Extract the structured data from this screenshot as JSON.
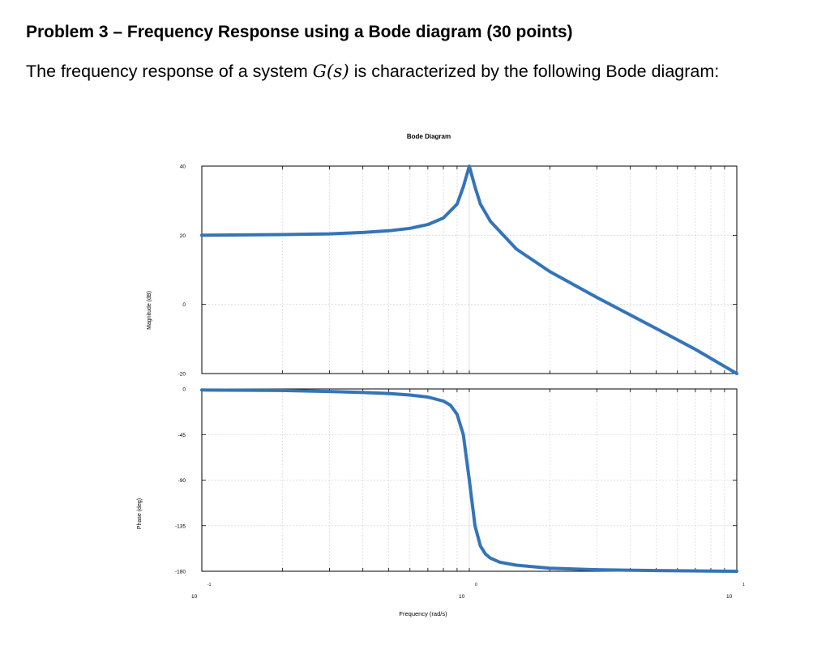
{
  "problem": {
    "heading": "Problem 3 – Frequency Response using a Bode diagram (30 points)",
    "intro_before": "The frequency response of a system ",
    "intro_math": "G(s)",
    "intro_after": " is characterized by the following Bode diagram:"
  },
  "chart_data": {
    "type": "line",
    "title": "Bode Diagram",
    "xlabel": "Frequency  (rad/s)",
    "x_scale": "log",
    "xlim": [
      0.1,
      10
    ],
    "x_ticks": [
      {
        "base": "10",
        "exp": "-1"
      },
      {
        "base": "10",
        "exp": "0"
      },
      {
        "base": "10",
        "exp": "1"
      }
    ],
    "grid": true,
    "line_color": "#3474b8",
    "magnitude": {
      "ylabel": "Magnitude (dB)",
      "ylim": [
        -20,
        40
      ],
      "yticks": [
        "40",
        "20",
        "0",
        "-20"
      ],
      "x": [
        0.1,
        0.2,
        0.3,
        0.4,
        0.5,
        0.6,
        0.7,
        0.8,
        0.9,
        0.95,
        1.0,
        1.05,
        1.1,
        1.2,
        1.5,
        2,
        3,
        5,
        7,
        10
      ],
      "y": [
        20.0,
        20.2,
        20.4,
        20.8,
        21.3,
        22.0,
        23.1,
        25.0,
        29.0,
        34.0,
        40.0,
        34.0,
        29.0,
        24.0,
        16.0,
        9.5,
        2.0,
        -7.0,
        -13.0,
        -20.0
      ]
    },
    "phase": {
      "ylabel": "Phase (deg)",
      "ylim": [
        -180,
        0
      ],
      "yticks": [
        "0",
        "-45",
        "-90",
        "-135",
        "-180"
      ],
      "x": [
        0.1,
        0.2,
        0.3,
        0.4,
        0.5,
        0.6,
        0.7,
        0.8,
        0.85,
        0.9,
        0.95,
        1.0,
        1.05,
        1.1,
        1.15,
        1.2,
        1.3,
        1.5,
        2,
        3,
        5,
        10
      ],
      "y": [
        -1,
        -1.5,
        -2.5,
        -3.5,
        -4.5,
        -6,
        -8,
        -12,
        -16,
        -25,
        -45,
        -90,
        -135,
        -155,
        -163,
        -167,
        -171,
        -174,
        -177,
        -178.5,
        -179.3,
        -180
      ]
    }
  }
}
